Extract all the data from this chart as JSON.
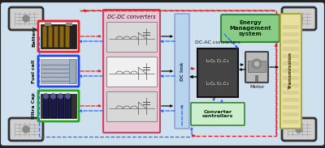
{
  "bg_color": "#cfe0ee",
  "labels": {
    "battery": "Battery",
    "fuel_cell": "Fuel cell",
    "ultra_cap": "Ultra Cap",
    "dc_dc": "DC-DC converters",
    "dc_link": "DC link",
    "dc_ac": "DC-AC converters",
    "energy_mgmt": "Energy\nManagement\nsystem",
    "motor": "Motor",
    "transmission": "Transmission",
    "conv_ctrl": "Converter\ncontrollers"
  },
  "colors": {
    "battery_border": "#ee2222",
    "fuel_cell_border": "#2244ee",
    "ultra_cap_border": "#22aa22",
    "dc_dc_bg": "#e8c8d4",
    "dc_dc_border": "#cc4466",
    "dc_link_bg": "#b8d4ec",
    "dc_link_border": "#8899cc",
    "energy_bg": "#88cc88",
    "energy_border": "#338833",
    "conv_ctrl_bg": "#cceecc",
    "conv_ctrl_border": "#338833",
    "dcac_bg": "#555555",
    "dcac_border": "#222222",
    "motor_bg": "#bbbbbb",
    "trans_bg": "#e8e0a0",
    "trans_border": "#aaaa44",
    "arrow_red": "#ee2222",
    "arrow_blue": "#3366ff",
    "arrow_black": "#111111",
    "car_outline": "#222222",
    "wheel_bg": "#cccccc",
    "sub_box_bg": "#d8d8d8",
    "sub_box_mid": "#f0f0f0"
  },
  "figsize": [
    4.0,
    1.83
  ],
  "dpi": 100
}
